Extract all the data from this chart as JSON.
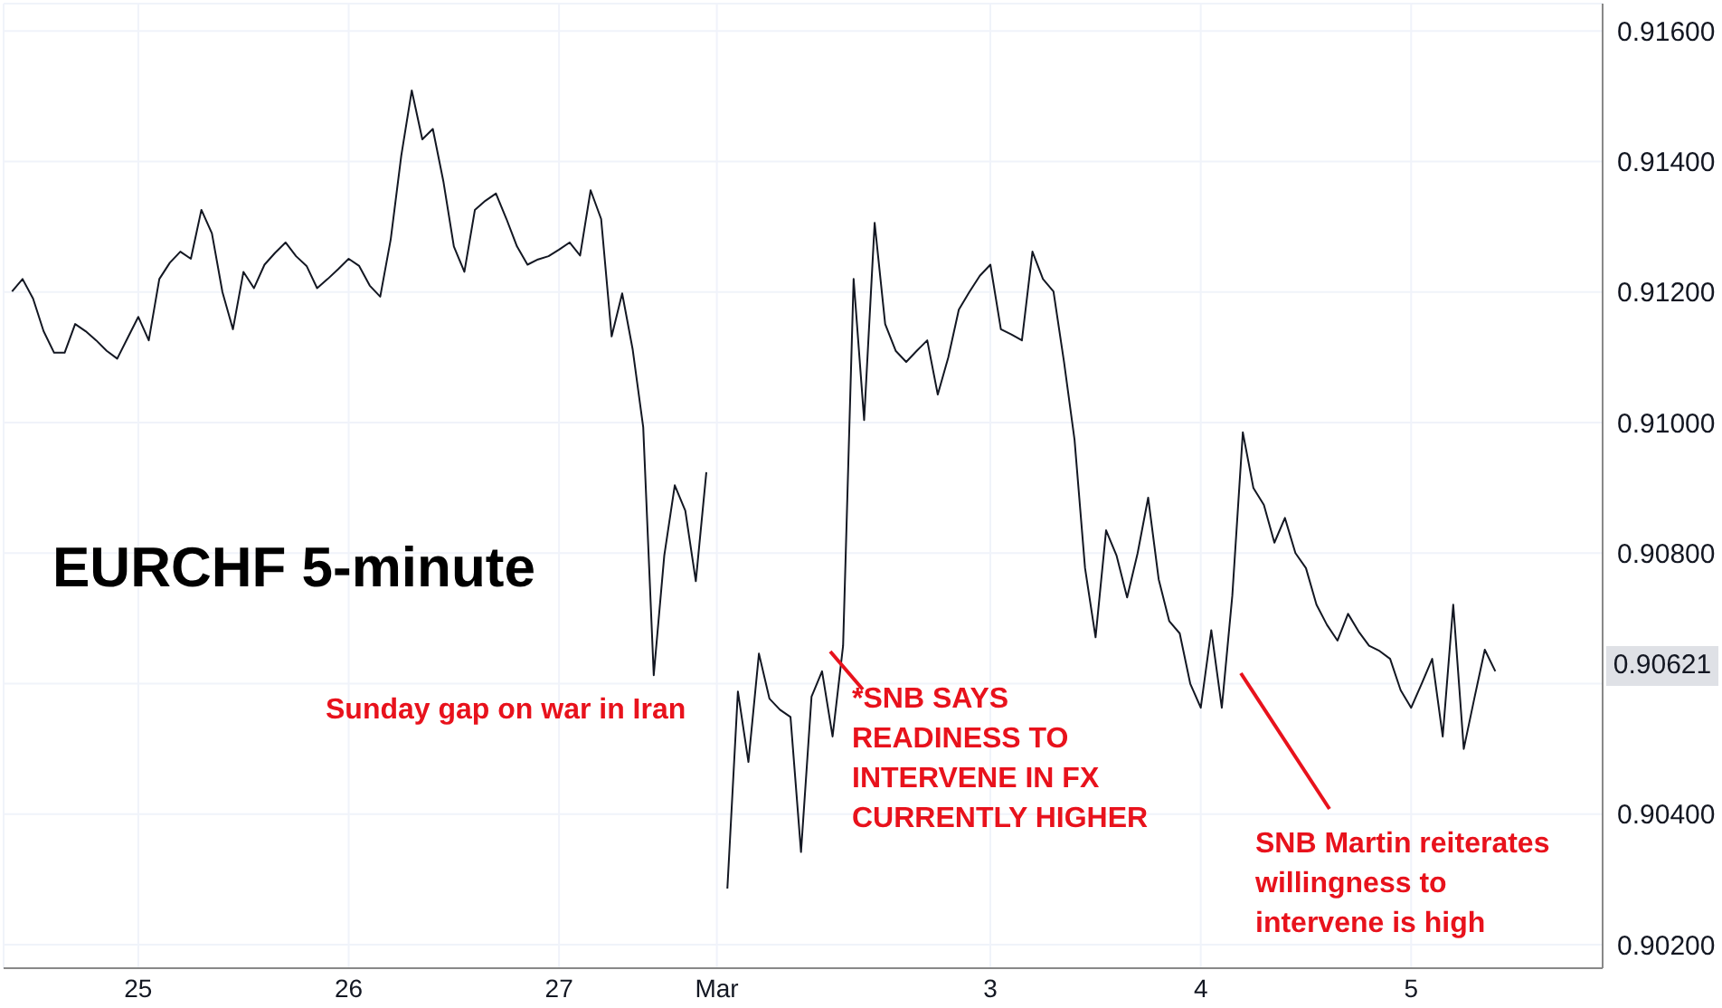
{
  "chart_data": {
    "type": "line",
    "title": "EURCHF 5-minute",
    "categories": [
      null,
      null,
      null,
      null,
      null,
      null,
      null,
      null,
      null,
      null,
      null,
      null,
      "25",
      null,
      null,
      null,
      null,
      null,
      null,
      null,
      null,
      null,
      null,
      null,
      null,
      null,
      null,
      null,
      null,
      null,
      null,
      null,
      "26",
      null,
      null,
      null,
      null,
      null,
      null,
      null,
      null,
      null,
      null,
      null,
      null,
      null,
      null,
      null,
      null,
      null,
      null,
      null,
      "27",
      null,
      null,
      null,
      null,
      null,
      null,
      null,
      null,
      null,
      null,
      null,
      null,
      null,
      null,
      "Mar",
      null,
      null,
      null,
      null,
      null,
      null,
      null,
      null,
      null,
      null,
      null,
      null,
      null,
      null,
      null,
      null,
      null,
      null,
      null,
      null,
      null,
      null,
      null,
      null,
      null,
      "3",
      null,
      null,
      null,
      null,
      null,
      null,
      null,
      null,
      null,
      null,
      null,
      null,
      null,
      null,
      null,
      null,
      null,
      null,
      null,
      "4",
      null,
      null,
      null,
      null,
      null,
      null,
      null,
      null,
      null,
      null,
      null,
      null,
      null,
      null,
      null,
      null,
      null,
      null,
      null,
      "5",
      null,
      null,
      null,
      null,
      null,
      null,
      null,
      null
    ],
    "series": [
      {
        "color": "#131722",
        "values": [
          0.91201,
          0.9122,
          0.9119,
          0.9114,
          0.91107,
          0.91107,
          0.91151,
          0.9114,
          0.91126,
          0.9111,
          0.91098,
          0.9113,
          0.91162,
          0.91126,
          0.9122,
          0.91245,
          0.91262,
          0.91251,
          0.91326,
          0.9129,
          0.912,
          0.91143,
          0.91231,
          0.91206,
          0.91242,
          0.9126,
          0.91276,
          0.91255,
          0.9124,
          0.91206,
          0.9122,
          0.91235,
          0.91251,
          0.9124,
          0.9121,
          0.91193,
          0.91281,
          0.91409,
          0.91509,
          0.91434,
          0.9145,
          0.9137,
          0.9127,
          0.91231,
          0.91326,
          0.9134,
          0.91351,
          0.91312,
          0.9127,
          0.91242,
          0.9125,
          0.91255,
          0.91265,
          0.91276,
          0.91256,
          0.91356,
          0.91312,
          0.91132,
          0.91198,
          0.91112,
          0.90993,
          0.90613,
          0.90796,
          0.90904,
          0.90865,
          0.90757,
          0.90924,
          null,
          0.90286,
          0.90588,
          0.9048,
          0.90646,
          0.90577,
          0.9056,
          0.90549,
          0.90342,
          0.9058,
          0.90619,
          0.90519,
          0.90658,
          0.9122,
          0.91004,
          0.91306,
          0.91151,
          0.9111,
          0.91093,
          0.9111,
          0.91126,
          0.91043,
          0.911,
          0.91173,
          0.912,
          0.91225,
          0.91242,
          0.91143,
          0.91135,
          0.91126,
          0.91262,
          0.9122,
          0.91201,
          0.91093,
          0.90974,
          0.90777,
          0.90671,
          0.90835,
          0.90796,
          0.90732,
          0.908,
          0.90885,
          0.9076,
          0.90696,
          0.90677,
          0.906,
          0.90563,
          0.90682,
          0.90563,
          0.90735,
          0.90985,
          0.909,
          0.90874,
          0.90816,
          0.90854,
          0.908,
          0.90777,
          0.90721,
          0.9069,
          0.90666,
          0.90707,
          0.9068,
          0.90658,
          0.9065,
          0.90638,
          0.9059,
          0.90563,
          0.906,
          0.90638,
          0.90519,
          0.90721,
          0.905,
          0.90577,
          0.90652,
          0.90619
        ]
      }
    ],
    "ylim": [
      0.90164,
      0.91642
    ],
    "yticks": [
      {
        "value": 0.902,
        "label": "0.90200"
      },
      {
        "value": 0.904,
        "label": "0.90400"
      },
      {
        "value": 0.906,
        "label": null
      },
      {
        "value": 0.908,
        "label": "0.90800"
      },
      {
        "value": 0.91,
        "label": "0.91000"
      },
      {
        "value": 0.912,
        "label": "0.91200"
      },
      {
        "value": 0.914,
        "label": "0.91400"
      },
      {
        "value": 0.916,
        "label": "0.91600"
      }
    ],
    "grid": true,
    "marker": "none",
    "line_style": "solid",
    "annotations": [
      "Sunday gap on war in Iran",
      "*SNB SAYS READINESS TO INTERVENE IN FX CURRENTLY HIGHER",
      "SNB Martin reiterates willingness to intervene is high",
      "0.90621"
    ]
  }
}
